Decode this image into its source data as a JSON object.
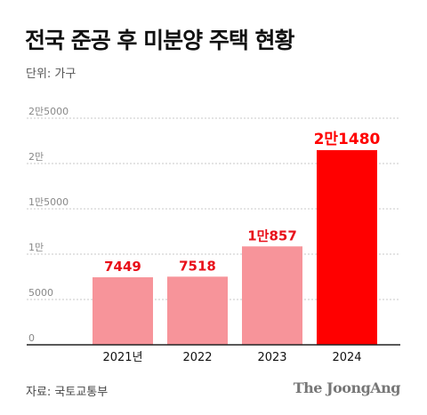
{
  "header": {
    "title": "전국 준공 후 미분양 주택 현황",
    "unit": "단위: 가구"
  },
  "footer": {
    "source": "자료: 국토교통부",
    "brand": "The JoongAng"
  },
  "colors": {
    "bar_default": "#f7949a",
    "bar_highlight": "#ff0000",
    "label_default": "#e8101a",
    "label_highlight": "#ff0000",
    "gridline": "#c8c8c8",
    "axis": "#222222"
  },
  "chart_data": {
    "type": "bar",
    "categories": [
      "2021년",
      "2022",
      "2023",
      "2024"
    ],
    "values": [
      7449,
      7518,
      10857,
      21480
    ],
    "data_labels": [
      "7449",
      "7518",
      "1만857",
      "2만1480"
    ],
    "highlight_index": 3,
    "yticks": [
      0,
      5000,
      10000,
      15000,
      20000,
      25000
    ],
    "ytick_labels": [
      "0",
      "5000",
      "1만",
      "1만5000",
      "2만",
      "2만5000"
    ],
    "ylim": [
      0,
      25000
    ],
    "grid": true,
    "legend": "none"
  }
}
